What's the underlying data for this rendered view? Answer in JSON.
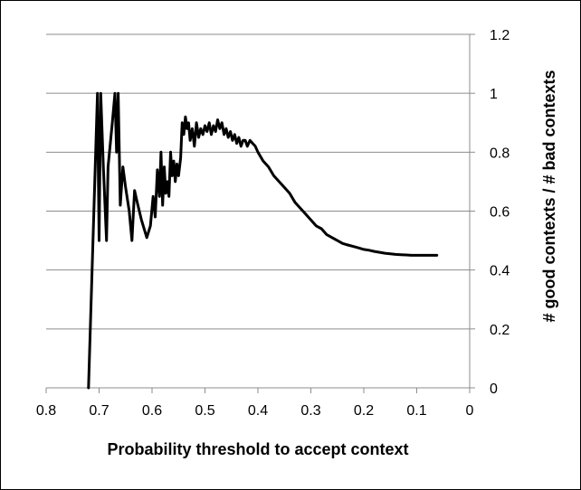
{
  "chart_data": {
    "type": "line",
    "title": "",
    "xlabel": "Probability threshold to accept context",
    "ylabel": "# good contexts / # bad contexts",
    "x_reversed": true,
    "xlim": [
      0.8,
      0
    ],
    "ylim": [
      0,
      1.2
    ],
    "y_axis_side": "right",
    "grid": "horizontal",
    "legend": "none",
    "x_ticks": [
      "0.8",
      "0.7",
      "0.6",
      "0.5",
      "0.4",
      "0.3",
      "0.2",
      "0.1",
      "0"
    ],
    "y_ticks": [
      "0",
      "0.2",
      "0.4",
      "0.6",
      "0.8",
      "1",
      "1.2"
    ],
    "line_color": "#000000",
    "grid_color": "#8c8c8c",
    "series": [
      {
        "points": [
          [
            0.72,
            0.0
          ],
          [
            0.703,
            1.0
          ],
          [
            0.7,
            0.5
          ],
          [
            0.697,
            1.0
          ],
          [
            0.692,
            0.75
          ],
          [
            0.686,
            0.5
          ],
          [
            0.683,
            0.75
          ],
          [
            0.675,
            0.9
          ],
          [
            0.67,
            1.0
          ],
          [
            0.667,
            0.8
          ],
          [
            0.664,
            1.0
          ],
          [
            0.66,
            0.62
          ],
          [
            0.655,
            0.75
          ],
          [
            0.65,
            0.68
          ],
          [
            0.643,
            0.6
          ],
          [
            0.638,
            0.5
          ],
          [
            0.633,
            0.67
          ],
          [
            0.628,
            0.63
          ],
          [
            0.62,
            0.57
          ],
          [
            0.61,
            0.51
          ],
          [
            0.603,
            0.55
          ],
          [
            0.598,
            0.65
          ],
          [
            0.594,
            0.58
          ],
          [
            0.59,
            0.74
          ],
          [
            0.586,
            0.65
          ],
          [
            0.583,
            0.8
          ],
          [
            0.58,
            0.62
          ],
          [
            0.577,
            0.75
          ],
          [
            0.574,
            0.66
          ],
          [
            0.571,
            0.7
          ],
          [
            0.568,
            0.65
          ],
          [
            0.565,
            0.8
          ],
          [
            0.562,
            0.72
          ],
          [
            0.559,
            0.77
          ],
          [
            0.556,
            0.7
          ],
          [
            0.553,
            0.76
          ],
          [
            0.55,
            0.72
          ],
          [
            0.546,
            0.78
          ],
          [
            0.543,
            0.9
          ],
          [
            0.54,
            0.86
          ],
          [
            0.537,
            0.92
          ],
          [
            0.534,
            0.88
          ],
          [
            0.531,
            0.9
          ],
          [
            0.528,
            0.84
          ],
          [
            0.524,
            0.88
          ],
          [
            0.52,
            0.82
          ],
          [
            0.516,
            0.9
          ],
          [
            0.512,
            0.85
          ],
          [
            0.508,
            0.88
          ],
          [
            0.504,
            0.86
          ],
          [
            0.5,
            0.89
          ],
          [
            0.496,
            0.87
          ],
          [
            0.492,
            0.9
          ],
          [
            0.488,
            0.86
          ],
          [
            0.484,
            0.89
          ],
          [
            0.48,
            0.87
          ],
          [
            0.476,
            0.91
          ],
          [
            0.472,
            0.88
          ],
          [
            0.468,
            0.9
          ],
          [
            0.464,
            0.86
          ],
          [
            0.46,
            0.88
          ],
          [
            0.456,
            0.85
          ],
          [
            0.452,
            0.87
          ],
          [
            0.448,
            0.84
          ],
          [
            0.444,
            0.86
          ],
          [
            0.44,
            0.83
          ],
          [
            0.436,
            0.85
          ],
          [
            0.432,
            0.82
          ],
          [
            0.428,
            0.84
          ],
          [
            0.424,
            0.84
          ],
          [
            0.42,
            0.82
          ],
          [
            0.415,
            0.84
          ],
          [
            0.41,
            0.83
          ],
          [
            0.405,
            0.82
          ],
          [
            0.4,
            0.8
          ],
          [
            0.39,
            0.77
          ],
          [
            0.38,
            0.75
          ],
          [
            0.37,
            0.72
          ],
          [
            0.36,
            0.7
          ],
          [
            0.35,
            0.68
          ],
          [
            0.34,
            0.66
          ],
          [
            0.33,
            0.63
          ],
          [
            0.32,
            0.61
          ],
          [
            0.31,
            0.59
          ],
          [
            0.3,
            0.57
          ],
          [
            0.29,
            0.55
          ],
          [
            0.28,
            0.54
          ],
          [
            0.27,
            0.52
          ],
          [
            0.26,
            0.51
          ],
          [
            0.25,
            0.5
          ],
          [
            0.24,
            0.49
          ],
          [
            0.23,
            0.485
          ],
          [
            0.22,
            0.48
          ],
          [
            0.21,
            0.475
          ],
          [
            0.2,
            0.47
          ],
          [
            0.19,
            0.467
          ],
          [
            0.18,
            0.463
          ],
          [
            0.17,
            0.46
          ],
          [
            0.16,
            0.457
          ],
          [
            0.15,
            0.455
          ],
          [
            0.14,
            0.453
          ],
          [
            0.13,
            0.452
          ],
          [
            0.12,
            0.451
          ],
          [
            0.11,
            0.45
          ],
          [
            0.1,
            0.45
          ],
          [
            0.09,
            0.45
          ],
          [
            0.08,
            0.45
          ],
          [
            0.07,
            0.45
          ],
          [
            0.062,
            0.45
          ]
        ]
      }
    ]
  }
}
